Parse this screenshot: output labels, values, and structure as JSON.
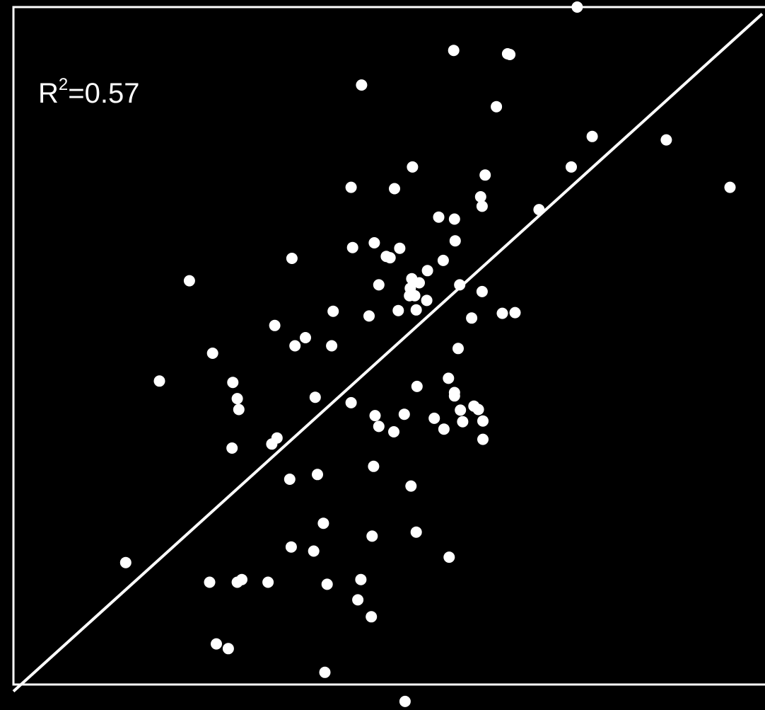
{
  "chart_data": {
    "type": "scatter",
    "title": "",
    "xlabel": "",
    "ylabel": "",
    "xlim": [
      0,
      1
    ],
    "ylim": [
      0,
      1
    ],
    "grid": false,
    "colors": {
      "background": "#000000",
      "points": "#ffffff",
      "frame": "#ffffff",
      "line": "#ffffff"
    },
    "annotation": {
      "base": "R",
      "sup": "2",
      "rest": "=0.57"
    },
    "reference_line": {
      "from": [
        0.0,
        -0.01
      ],
      "to": [
        1.0,
        0.99
      ]
    },
    "points": [
      [
        0.753,
        1.0
      ],
      [
        0.588,
        0.936
      ],
      [
        0.66,
        0.931
      ],
      [
        0.663,
        0.93
      ],
      [
        0.465,
        0.885
      ],
      [
        0.645,
        0.853
      ],
      [
        0.773,
        0.809
      ],
      [
        0.872,
        0.804
      ],
      [
        0.533,
        0.764
      ],
      [
        0.745,
        0.764
      ],
      [
        0.63,
        0.752
      ],
      [
        0.451,
        0.734
      ],
      [
        0.509,
        0.732
      ],
      [
        0.957,
        0.734
      ],
      [
        0.624,
        0.72
      ],
      [
        0.626,
        0.706
      ],
      [
        0.702,
        0.701
      ],
      [
        0.568,
        0.69
      ],
      [
        0.589,
        0.687
      ],
      [
        0.59,
        0.655
      ],
      [
        0.482,
        0.652
      ],
      [
        0.453,
        0.645
      ],
      [
        0.516,
        0.644
      ],
      [
        0.498,
        0.632
      ],
      [
        0.503,
        0.63
      ],
      [
        0.372,
        0.629
      ],
      [
        0.574,
        0.626
      ],
      [
        0.553,
        0.611
      ],
      [
        0.532,
        0.599
      ],
      [
        0.488,
        0.59
      ],
      [
        0.596,
        0.59
      ],
      [
        0.626,
        0.58
      ],
      [
        0.542,
        0.593
      ],
      [
        0.235,
        0.596
      ],
      [
        0.53,
        0.585
      ],
      [
        0.552,
        0.567
      ],
      [
        0.529,
        0.574
      ],
      [
        0.536,
        0.574
      ],
      [
        0.514,
        0.552
      ],
      [
        0.538,
        0.553
      ],
      [
        0.427,
        0.551
      ],
      [
        0.475,
        0.544
      ],
      [
        0.612,
        0.541
      ],
      [
        0.653,
        0.548
      ],
      [
        0.67,
        0.549
      ],
      [
        0.349,
        0.53
      ],
      [
        0.39,
        0.512
      ],
      [
        0.376,
        0.5
      ],
      [
        0.266,
        0.489
      ],
      [
        0.425,
        0.5
      ],
      [
        0.594,
        0.496
      ],
      [
        0.195,
        0.448
      ],
      [
        0.293,
        0.446
      ],
      [
        0.581,
        0.452
      ],
      [
        0.539,
        0.44
      ],
      [
        0.589,
        0.431
      ],
      [
        0.299,
        0.422
      ],
      [
        0.403,
        0.424
      ],
      [
        0.451,
        0.416
      ],
      [
        0.301,
        0.406
      ],
      [
        0.483,
        0.397
      ],
      [
        0.522,
        0.399
      ],
      [
        0.589,
        0.426
      ],
      [
        0.615,
        0.411
      ],
      [
        0.621,
        0.406
      ],
      [
        0.597,
        0.405
      ],
      [
        0.562,
        0.393
      ],
      [
        0.6,
        0.388
      ],
      [
        0.627,
        0.389
      ],
      [
        0.575,
        0.377
      ],
      [
        0.488,
        0.381
      ],
      [
        0.508,
        0.373
      ],
      [
        0.352,
        0.364
      ],
      [
        0.345,
        0.355
      ],
      [
        0.292,
        0.349
      ],
      [
        0.627,
        0.362
      ],
      [
        0.406,
        0.31
      ],
      [
        0.369,
        0.303
      ],
      [
        0.481,
        0.322
      ],
      [
        0.531,
        0.293
      ],
      [
        0.414,
        0.238
      ],
      [
        0.538,
        0.225
      ],
      [
        0.479,
        0.219
      ],
      [
        0.371,
        0.203
      ],
      [
        0.401,
        0.197
      ],
      [
        0.582,
        0.188
      ],
      [
        0.15,
        0.18
      ],
      [
        0.464,
        0.155
      ],
      [
        0.262,
        0.151
      ],
      [
        0.299,
        0.151
      ],
      [
        0.305,
        0.155
      ],
      [
        0.34,
        0.151
      ],
      [
        0.419,
        0.148
      ],
      [
        0.46,
        0.125
      ],
      [
        0.478,
        0.1
      ],
      [
        0.271,
        0.06
      ],
      [
        0.287,
        0.053
      ],
      [
        0.416,
        0.018
      ],
      [
        0.523,
        -0.025
      ]
    ]
  }
}
